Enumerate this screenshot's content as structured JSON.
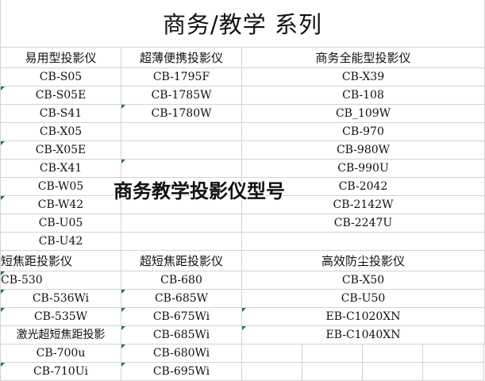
{
  "title": "商务/教学 系列",
  "overlay": "商务教学投影仪型号",
  "accent": "#1f7a2e",
  "section1": {
    "headers": [
      "易用型投影仪",
      "超薄便携投影仪",
      "商务全能型投影仪"
    ],
    "col0": [
      "CB-S05",
      "CB-S05E",
      "CB-S41",
      "CB-X05",
      "CB-X05E",
      "CB-X41",
      "CB-W05",
      "CB-W42",
      "CB-U05",
      "CB-U42"
    ],
    "col1": [
      "CB-1795F",
      "CB-1785W",
      "CB-1780W"
    ],
    "col2": [
      "CB-X39",
      "CB-108",
      "CB_109W",
      "CB-970",
      "CB-980W",
      "CB-990U",
      "CB-2042",
      "CB-2142W",
      "CB-2247U"
    ]
  },
  "section2": {
    "headers": [
      "短焦距投影仪",
      "超短焦距投影仪",
      "高效防尘投影仪"
    ],
    "col0": [
      "CB-530",
      "CB-536Wi",
      "CB-535W",
      "激光超短焦距投影",
      "CB-700u",
      "CB-710Ui"
    ],
    "col1": [
      "CB-680",
      "CB-685W",
      "CB-675Wi",
      "CB-685Wi",
      "CB-680Wi",
      "CB-695Wi"
    ],
    "col2": [
      "CB-X50",
      "CB-U50",
      "EB-C1020XN",
      "EB-C1040XN"
    ]
  }
}
